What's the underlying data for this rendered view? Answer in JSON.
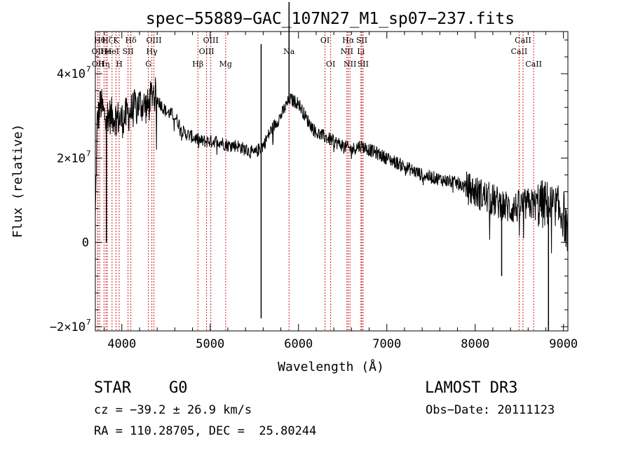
{
  "chart_data": {
    "type": "line",
    "title": "spec−55889−GAC_107N27_M1_sp07−237.fits",
    "xlabel": "Wavelength (Å)",
    "ylabel": "Flux (relative)",
    "xlim": [
      3700,
      9050
    ],
    "ylim": [
      -21000000,
      50000000
    ],
    "x_ticks": [
      4000,
      5000,
      6000,
      7000,
      8000,
      9000
    ],
    "y_ticks": [
      {
        "value": 40000000,
        "mantissa": "4×10",
        "exp": "7"
      },
      {
        "value": 20000000,
        "mantissa": "2×10",
        "exp": "7"
      },
      {
        "value": 0,
        "mantissa": "0",
        "exp": ""
      },
      {
        "value": -20000000,
        "mantissa": "−2×10",
        "exp": "7"
      }
    ],
    "lines": [
      {
        "wl": 3750,
        "label": "Hθ",
        "row": 1
      },
      {
        "wl": 3727,
        "label": "OII",
        "row": 2
      },
      {
        "wl": 3730,
        "label": "OII",
        "row": 3
      },
      {
        "wl": 3798,
        "label": "Hη",
        "row": 3
      },
      {
        "wl": 3835,
        "label": "Hζ",
        "row": 1
      },
      {
        "wl": 3820,
        "label": "He",
        "row": 2
      },
      {
        "wl": 3889,
        "label": "HeI",
        "row": 2
      },
      {
        "wl": 3934,
        "label": "K",
        "row": 1
      },
      {
        "wl": 3970,
        "label": "H",
        "row": 3
      },
      {
        "wl": 4070,
        "label": "SII",
        "row": 2
      },
      {
        "wl": 4102,
        "label": "Hδ",
        "row": 1
      },
      {
        "wl": 4300,
        "label": "G",
        "row": 3
      },
      {
        "wl": 4340,
        "label": "Hγ",
        "row": 2
      },
      {
        "wl": 4363,
        "label": "OIII",
        "row": 1
      },
      {
        "wl": 4861,
        "label": "Hβ",
        "row": 3
      },
      {
        "wl": 4959,
        "label": "OIII",
        "row": 2
      },
      {
        "wl": 5007,
        "label": "OIII",
        "row": 1
      },
      {
        "wl": 5175,
        "label": "Mg",
        "row": 3
      },
      {
        "wl": 5893,
        "label": "Na",
        "row": 2
      },
      {
        "wl": 6300,
        "label": "OI",
        "row": 1
      },
      {
        "wl": 6364,
        "label": "OI",
        "row": 3
      },
      {
        "wl": 6548,
        "label": "NII",
        "row": 2
      },
      {
        "wl": 6563,
        "label": "Hα",
        "row": 1
      },
      {
        "wl": 6583,
        "label": "NII",
        "row": 3
      },
      {
        "wl": 6707,
        "label": "Li",
        "row": 2
      },
      {
        "wl": 6716,
        "label": "SII",
        "row": 1
      },
      {
        "wl": 6731,
        "label": "SII",
        "row": 3
      },
      {
        "wl": 8498,
        "label": "CaII",
        "row": 2
      },
      {
        "wl": 8542,
        "label": "CaII",
        "row": 1
      },
      {
        "wl": 8662,
        "label": "CaII",
        "row": 3
      }
    ],
    "spectrum_anchors_x": [
      3700,
      3720,
      3760,
      3800,
      3900,
      4000,
      4100,
      4200,
      4300,
      4350,
      4400,
      4500,
      4600,
      4700,
      4800,
      4900,
      5000,
      5100,
      5200,
      5300,
      5400,
      5500,
      5600,
      5700,
      5800,
      5900,
      6000,
      6100,
      6200,
      6300,
      6400,
      6500,
      6600,
      6700,
      6800,
      6900,
      7000,
      7100,
      7200,
      7400,
      7600,
      7800,
      8000,
      8200,
      8400,
      8600,
      8800,
      9000,
      9050
    ],
    "spectrum_anchors_y": [
      5000000,
      28000000,
      33000000,
      30000000,
      30000000,
      29000000,
      31000000,
      33000000,
      32000000,
      36000000,
      34000000,
      31000000,
      30000000,
      26000000,
      25000000,
      24000000,
      24000000,
      24000000,
      23000000,
      23000000,
      22000000,
      21000000,
      23000000,
      27000000,
      30000000,
      34000000,
      33000000,
      29000000,
      26000000,
      25000000,
      24000000,
      23000000,
      22000000,
      23000000,
      22000000,
      21000000,
      20000000,
      19000000,
      18000000,
      16000000,
      15000000,
      14000000,
      12000000,
      10000000,
      8000000,
      9000000,
      9000000,
      7000000,
      1000000
    ],
    "spikes": [
      {
        "x": 5577,
        "y": 47000000
      },
      {
        "x": 5577,
        "y": -18000000
      },
      {
        "x": 5893,
        "y": 57000000
      },
      {
        "x": 3825,
        "y": 0
      },
      {
        "x": 8830,
        "y": -21000000
      },
      {
        "x": 8300,
        "y": -8000000
      }
    ]
  },
  "footer": {
    "object_class": "STAR",
    "subclass": "G0",
    "survey": "LAMOST DR3",
    "cz": "cz = −39.2 ± 26.9 km/s",
    "obs_date": "Obs−Date: 20111123",
    "coords": "RA = 110.28705, DEC =  25.80244"
  }
}
